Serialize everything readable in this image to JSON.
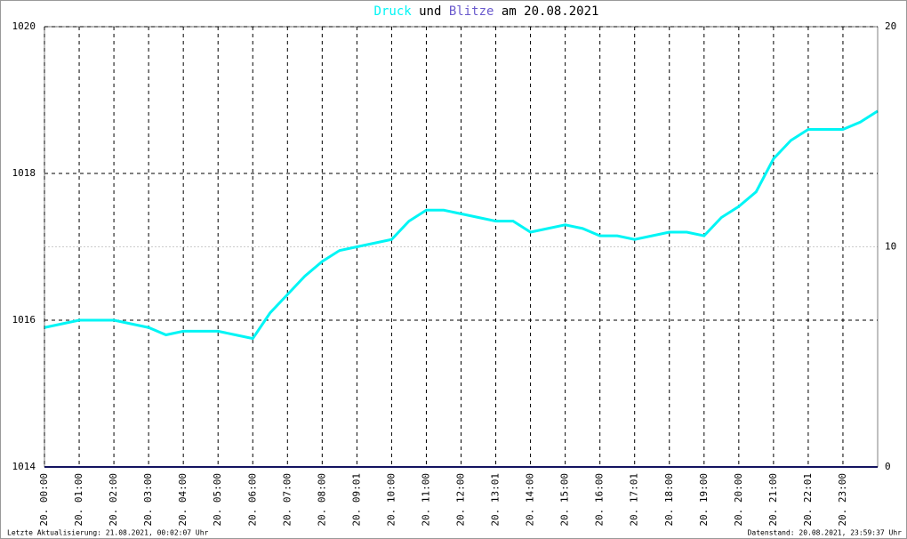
{
  "chart_data": {
    "type": "line",
    "title_parts": [
      "Druck",
      "und",
      "Blitze",
      "am 20.08.2021"
    ],
    "footer_left": "Letzte Aktualisierung: 21.08.2021, 00:02:07 Uhr",
    "footer_right": "Datenstand: 20.08.2021, 23:59:37 Uhr",
    "xlim": [
      0,
      24
    ],
    "xticks": [
      {
        "value": 0,
        "label": "20. 00:00"
      },
      {
        "value": 1,
        "label": "20. 01:00"
      },
      {
        "value": 2,
        "label": "20. 02:00"
      },
      {
        "value": 3,
        "label": "20. 03:00"
      },
      {
        "value": 4,
        "label": "20. 04:00"
      },
      {
        "value": 5,
        "label": "20. 05:00"
      },
      {
        "value": 6,
        "label": "20. 06:00"
      },
      {
        "value": 7,
        "label": "20. 07:00"
      },
      {
        "value": 8,
        "label": "20. 08:00"
      },
      {
        "value": 9,
        "label": "20. 09:01"
      },
      {
        "value": 10,
        "label": "20. 10:00"
      },
      {
        "value": 11,
        "label": "20. 11:00"
      },
      {
        "value": 12,
        "label": "20. 12:00"
      },
      {
        "value": 13,
        "label": "20. 13:01"
      },
      {
        "value": 14,
        "label": "20. 14:00"
      },
      {
        "value": 15,
        "label": "20. 15:00"
      },
      {
        "value": 16,
        "label": "20. 16:00"
      },
      {
        "value": 17,
        "label": "20. 17:01"
      },
      {
        "value": 18,
        "label": "20. 18:00"
      },
      {
        "value": 19,
        "label": "20. 19:00"
      },
      {
        "value": 20,
        "label": "20. 20:00"
      },
      {
        "value": 21,
        "label": "20. 21:00"
      },
      {
        "value": 22,
        "label": "20. 22:01"
      },
      {
        "value": 23,
        "label": "20. 23:00"
      }
    ],
    "ylim": [
      1014,
      1020
    ],
    "yticks": [
      1014,
      1016,
      1018,
      1020
    ],
    "y2lim": [
      0,
      20
    ],
    "y2ticks": [
      0,
      10,
      20
    ],
    "grid": true,
    "series": [
      {
        "name": "Druck",
        "color": "#00f5f5",
        "x": [
          0,
          0.5,
          1,
          1.5,
          2,
          2.5,
          3,
          3.5,
          4,
          4.5,
          5,
          5.5,
          6,
          6.5,
          7,
          7.5,
          8,
          8.5,
          9,
          9.5,
          10,
          10.5,
          11,
          11.5,
          12,
          12.5,
          13,
          13.5,
          14,
          14.5,
          15,
          15.5,
          16,
          16.5,
          17,
          17.5,
          18,
          18.5,
          19,
          19.5,
          20,
          20.5,
          21,
          21.5,
          22,
          22.5,
          23,
          23.5,
          24
        ],
        "values": [
          1015.9,
          1015.95,
          1016.0,
          1016.0,
          1016.0,
          1015.95,
          1015.9,
          1015.8,
          1015.85,
          1015.85,
          1015.85,
          1015.8,
          1015.75,
          1016.1,
          1016.35,
          1016.6,
          1016.8,
          1016.95,
          1017.0,
          1017.05,
          1017.1,
          1017.35,
          1017.5,
          1017.5,
          1017.45,
          1017.4,
          1017.35,
          1017.35,
          1017.2,
          1017.25,
          1017.3,
          1017.25,
          1017.15,
          1017.15,
          1017.1,
          1017.15,
          1017.2,
          1017.2,
          1017.15,
          1017.4,
          1017.55,
          1017.75,
          1018.2,
          1018.45,
          1018.6,
          1018.6,
          1018.6,
          1018.7,
          1018.85
        ]
      },
      {
        "name": "Blitze",
        "color": "#1a1a80",
        "axis": "y2",
        "x": [
          0,
          24
        ],
        "values": [
          0,
          0
        ]
      }
    ]
  }
}
